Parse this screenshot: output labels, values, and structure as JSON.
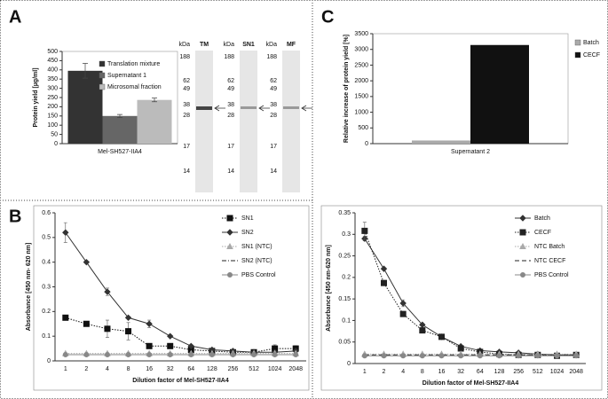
{
  "panels": [
    "A",
    "B",
    "C"
  ],
  "gel": {
    "unit": "kDa",
    "lanes": [
      "TM",
      "SN1",
      "MF"
    ],
    "markers": [
      188,
      62,
      49,
      38,
      28,
      17,
      14
    ]
  },
  "chart_data": [
    {
      "type": "bar",
      "ylabel": "Protein yield [µg/ml]",
      "categories": [
        "Mel-SH527-IIA4"
      ],
      "ylim": [
        0,
        500
      ],
      "yticks": [
        0,
        50,
        100,
        150,
        200,
        250,
        300,
        350,
        400,
        450,
        500
      ],
      "legend": "top-right",
      "series": [
        {
          "name": "Translation mixture",
          "color": "#333333",
          "values": [
            395
          ],
          "errors": [
            40
          ]
        },
        {
          "name": "Supernatant 1",
          "color": "#666666",
          "values": [
            150
          ],
          "errors": [
            8
          ]
        },
        {
          "name": "Microsomal fraction",
          "color": "#bbbbbb",
          "values": [
            237
          ],
          "errors": [
            10
          ]
        }
      ]
    },
    {
      "type": "bar",
      "ylabel": "Relative increase of protein yield [%]",
      "categories": [
        "Supernatant 2"
      ],
      "ylim": [
        0,
        3500
      ],
      "yticks": [
        0,
        500,
        1000,
        1500,
        2000,
        2500,
        3000,
        3500
      ],
      "legend": "right",
      "series": [
        {
          "name": "Batch",
          "color": "#aaaaaa",
          "values": [
            100
          ]
        },
        {
          "name": "CECF",
          "color": "#111111",
          "values": [
            3140
          ]
        }
      ]
    },
    {
      "type": "line",
      "xlabel": "Dilution factor of Mel-SH527-IIA4",
      "ylabel": "Absorbance [450 nm- 620 nm]",
      "categories": [
        "1",
        "2",
        "4",
        "8",
        "16",
        "32",
        "64",
        "128",
        "256",
        "512",
        "1024",
        "2048"
      ],
      "ylim": [
        0,
        0.6
      ],
      "yticks": [
        0,
        0.1,
        0.2,
        0.3,
        0.4,
        0.5,
        0.6
      ],
      "legend": "top-right",
      "series": [
        {
          "name": "SN1",
          "color": "#111111",
          "marker": "square",
          "dash": "dotted",
          "values": [
            0.175,
            0.15,
            0.13,
            0.12,
            0.06,
            0.06,
            0.045,
            0.04,
            0.035,
            0.035,
            0.05,
            0.05
          ],
          "errors": [
            0.005,
            0.005,
            0.035,
            0.035,
            0.005,
            0.005,
            0.005,
            0.005,
            0.005,
            0.005,
            0.015,
            0.012
          ]
        },
        {
          "name": "SN2",
          "color": "#333333",
          "marker": "diamond",
          "dash": "solid",
          "values": [
            0.52,
            0.4,
            0.28,
            0.175,
            0.15,
            0.1,
            0.06,
            0.045,
            0.04,
            0.035,
            0.035,
            0.04
          ],
          "errors": [
            0.04,
            0.005,
            0.015,
            0.005,
            0.015,
            0.005,
            0.005,
            0.005,
            0.005,
            0.005,
            0.005,
            0.005
          ]
        },
        {
          "name": "SN1 (NTC)",
          "color": "#aaaaaa",
          "marker": "triangle",
          "dash": "dotted",
          "values": [
            0.03,
            0.03,
            0.03,
            0.03,
            0.03,
            0.03,
            0.03,
            0.03,
            0.03,
            0.03,
            0.03,
            0.03
          ]
        },
        {
          "name": "SN2 (NTC)",
          "color": "#222222",
          "marker": "none",
          "dash": "dashdot",
          "values": [
            0.025,
            0.025,
            0.025,
            0.025,
            0.025,
            0.025,
            0.025,
            0.025,
            0.025,
            0.025,
            0.025,
            0.025
          ]
        },
        {
          "name": "PBS Control",
          "color": "#888888",
          "marker": "circle",
          "dash": "solid",
          "values": [
            0.025,
            0.025,
            0.025,
            0.025,
            0.025,
            0.025,
            0.025,
            0.025,
            0.025,
            0.025,
            0.025,
            0.025
          ]
        }
      ]
    },
    {
      "type": "line",
      "xlabel": "Dilution factor of Mel-SH527-IIA4",
      "ylabel": "Absorbance [450 nm-620 nm]",
      "categories": [
        "1",
        "2",
        "4",
        "8",
        "16",
        "32",
        "64",
        "128",
        "256",
        "512",
        "1024",
        "2048"
      ],
      "ylim": [
        0,
        0.35
      ],
      "yticks": [
        0,
        0.05,
        0.1,
        0.15,
        0.2,
        0.25,
        0.3,
        0.35
      ],
      "legend": "top-right",
      "series": [
        {
          "name": "Batch",
          "color": "#333333",
          "marker": "diamond",
          "dash": "solid",
          "values": [
            0.29,
            0.22,
            0.14,
            0.09,
            0.062,
            0.04,
            0.03,
            0.027,
            0.025,
            0.022,
            0.02,
            0.02
          ],
          "errors": [
            0.005,
            0.003,
            0.008,
            0.003,
            0.002,
            0.002,
            0.002,
            0.002,
            0.002,
            0.002,
            0.002,
            0.002
          ]
        },
        {
          "name": "CECF",
          "color": "#222222",
          "marker": "square",
          "dash": "dotted",
          "values": [
            0.308,
            0.187,
            0.115,
            0.077,
            0.062,
            0.035,
            0.027,
            0.022,
            0.02,
            0.02,
            0.018,
            0.02
          ],
          "errors": [
            0.02,
            0.005,
            0.005,
            0.003,
            0.002,
            0.002,
            0.002,
            0.002,
            0.002,
            0.002,
            0.002,
            0.002
          ]
        },
        {
          "name": "NTC Batch",
          "color": "#aaaaaa",
          "marker": "triangle",
          "dash": "dotted",
          "values": [
            0.022,
            0.022,
            0.022,
            0.022,
            0.022,
            0.022,
            0.022,
            0.022,
            0.022,
            0.022,
            0.022,
            0.022
          ]
        },
        {
          "name": "NTC CECF",
          "color": "#222222",
          "marker": "none",
          "dash": "dashed",
          "values": [
            0.02,
            0.02,
            0.02,
            0.02,
            0.02,
            0.02,
            0.02,
            0.02,
            0.02,
            0.02,
            0.02,
            0.02
          ]
        },
        {
          "name": "PBS Control",
          "color": "#888888",
          "marker": "circle",
          "dash": "solid",
          "values": [
            0.018,
            0.018,
            0.018,
            0.018,
            0.018,
            0.018,
            0.018,
            0.018,
            0.018,
            0.018,
            0.018,
            0.018
          ]
        }
      ]
    }
  ]
}
